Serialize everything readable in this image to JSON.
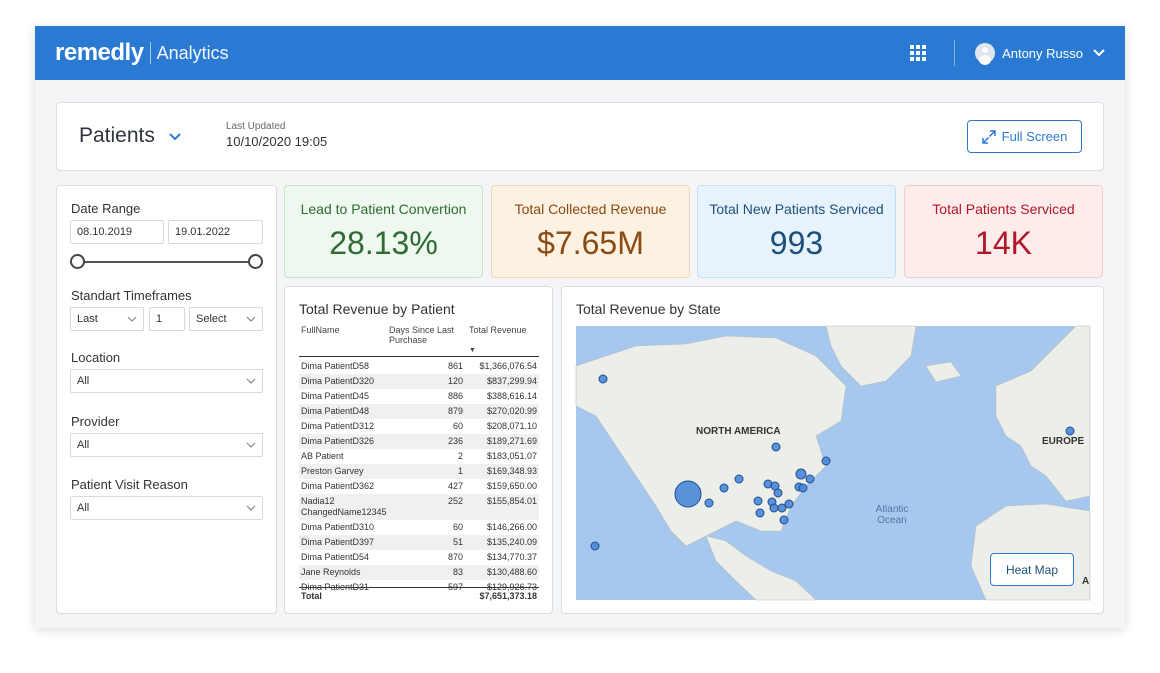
{
  "topbar": {
    "brand": "remedly",
    "product": "Analytics",
    "user_name": "Antony Russo"
  },
  "header": {
    "title": "Patients",
    "updated_label": "Last Updated",
    "updated_value": "10/10/2020 19:05",
    "fullscreen_label": "Full Screen"
  },
  "filters": {
    "date_range_label": "Date Range",
    "date_from": "08.10.2019",
    "date_to": "19.01.2022",
    "timeframes_label": "Standart Timeframes",
    "timeframe_mode": "Last",
    "timeframe_count": "1",
    "timeframe_unit": "Select",
    "location_label": "Location",
    "location_value": "All",
    "provider_label": "Provider",
    "provider_value": "All",
    "visit_reason_label": "Patient Visit Reason",
    "visit_reason_value": "All"
  },
  "kpis": [
    {
      "title": "Lead to Patient Convertion",
      "value": "28.13%",
      "color": "#2f6b33"
    },
    {
      "title": "Total Collected Revenue",
      "value": "$7.65M",
      "color": "#8a4a12"
    },
    {
      "title": "Total New Patients Serviced",
      "value": "993",
      "color": "#1d4f7a"
    },
    {
      "title": "Total Patients Serviced",
      "value": "14K",
      "color": "#b3162a"
    }
  ],
  "revenue_table": {
    "title": "Total Revenue by Patient",
    "columns": [
      "FullName",
      "Days Since Last Purchase",
      "Total Revenue"
    ],
    "rows": [
      [
        "Dima PatientD58",
        "861",
        "$1,366,076.54"
      ],
      [
        "Dima PatientD320",
        "120",
        "$837,299.94"
      ],
      [
        "Dima PatientD45",
        "886",
        "$388,616.14"
      ],
      [
        "Dima PatientD48",
        "879",
        "$270,020.99"
      ],
      [
        "Dima PatientD312",
        "60",
        "$208,071.10"
      ],
      [
        "Dima PatientD326",
        "236",
        "$189,271.69"
      ],
      [
        "AB Patient",
        "2",
        "$183,051.07"
      ],
      [
        "Preston Garvey",
        "1",
        "$169,348.93"
      ],
      [
        "Dima PatientD362",
        "427",
        "$159,650.00"
      ],
      [
        "Nadia12 ChangedName12345",
        "252",
        "$155,854.01"
      ],
      [
        "Dima PatientD310",
        "60",
        "$146,266.00"
      ],
      [
        "Dima PatientD397",
        "51",
        "$135,240.09"
      ],
      [
        "Dima PatientD54",
        "870",
        "$134,770.37"
      ],
      [
        "Jane Reynolds",
        "83",
        "$130,488.60"
      ],
      [
        "Dima PatientD31",
        "597",
        "$129,926.73"
      ]
    ],
    "total_label": "Total",
    "total_value": "$7,651,373.18"
  },
  "map": {
    "title": "Total Revenue by State",
    "labels": {
      "north_america": "NORTH AMERICA",
      "europe": "EUROPE",
      "ocean_1": "Atlantic",
      "ocean_2": "Ocean",
      "africa_partial": "A"
    },
    "heatmap_label": "Heat Map",
    "colors": {
      "water": "#a6c8ef",
      "land": "#eceeea",
      "marker": "#4a86d8"
    }
  }
}
